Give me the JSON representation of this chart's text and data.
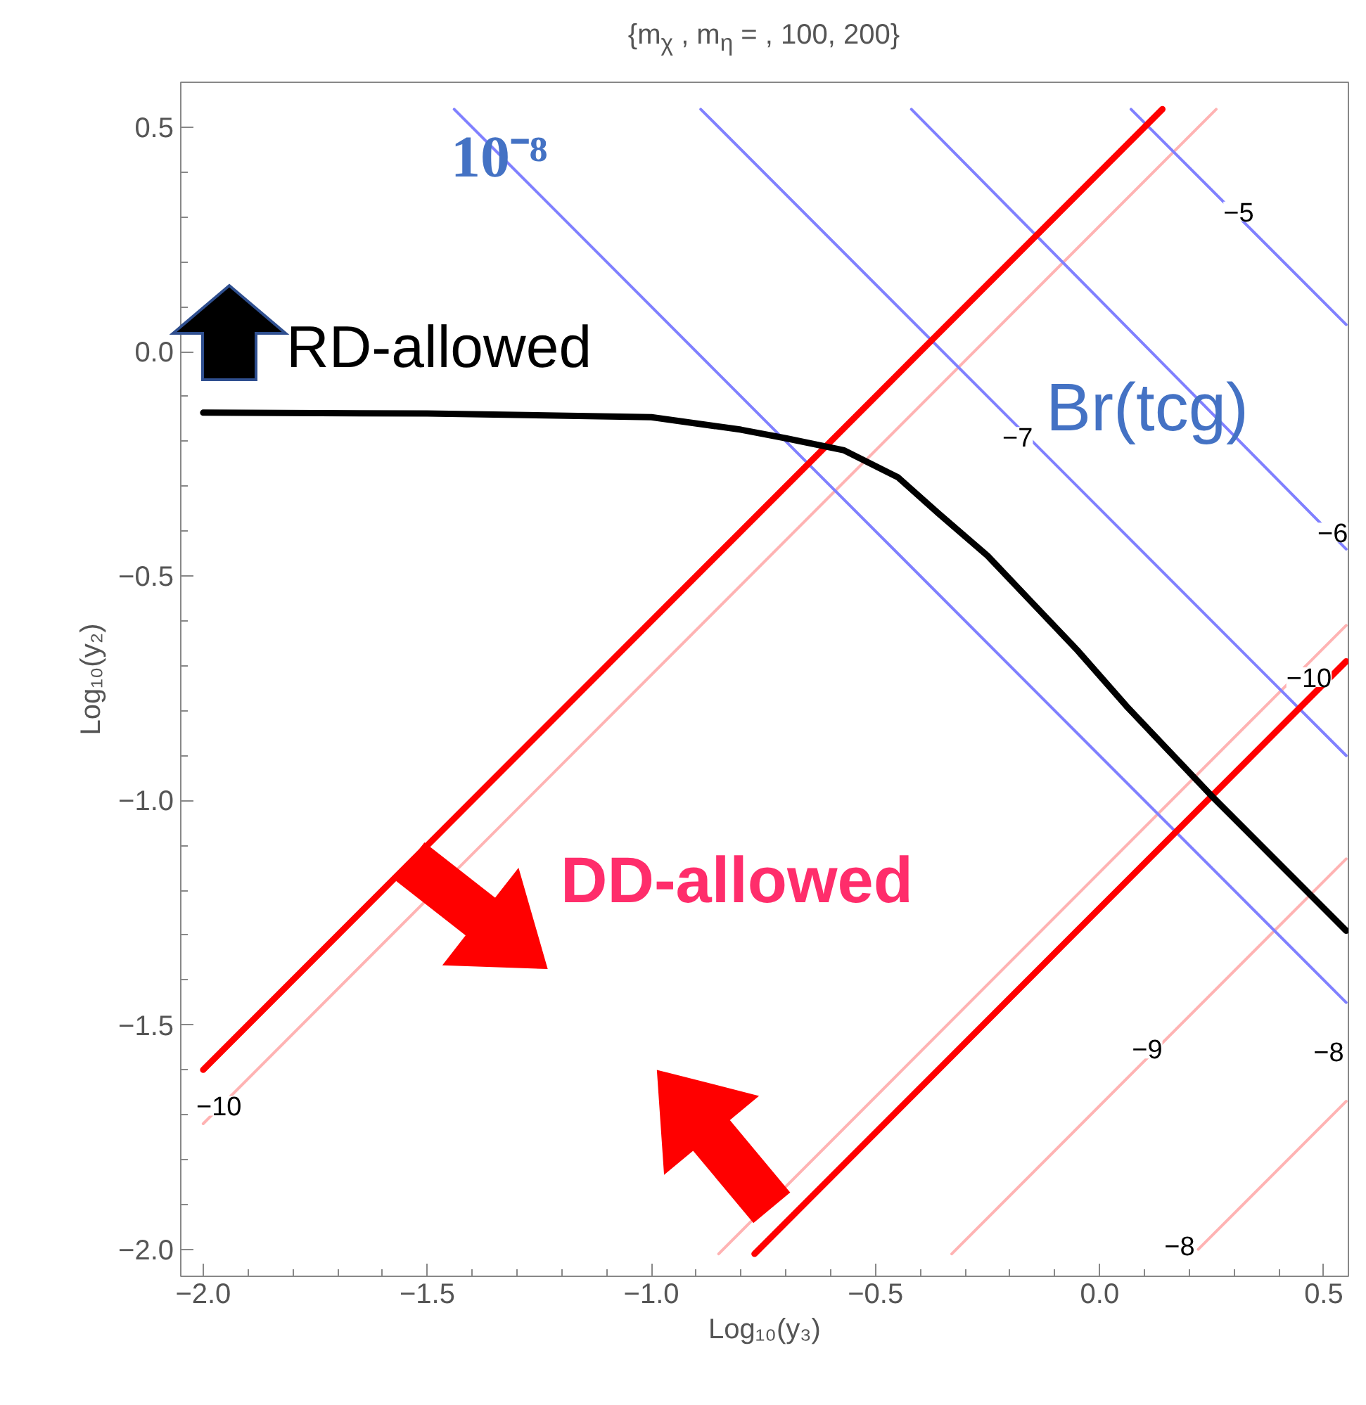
{
  "chart_data": {
    "type": "line",
    "title": "{m$_{χ}$ , m$_{η}$ = , 100, 200}",
    "xlabel": "Log₁₀(y₃)",
    "ylabel": "Log₁₀(y₂)",
    "xlim": [
      -2.05,
      0.555
    ],
    "ylim": [
      -2.06,
      0.6
    ],
    "xticks": [
      {
        "value": -2.0,
        "label": "−2.0"
      },
      {
        "value": -1.5,
        "label": "−1.5"
      },
      {
        "value": -1.0,
        "label": "−1.0"
      },
      {
        "value": -0.5,
        "label": "−0.5"
      },
      {
        "value": 0.0,
        "label": "0.0"
      },
      {
        "value": 0.5,
        "label": "0.5"
      }
    ],
    "yticks": [
      {
        "value": -2.0,
        "label": "−2.0"
      },
      {
        "value": -1.5,
        "label": "−1.5"
      },
      {
        "value": -1.0,
        "label": "−1.0"
      },
      {
        "value": -0.5,
        "label": "−0.5"
      },
      {
        "value": 0.0,
        "label": "0.0"
      },
      {
        "value": 0.5,
        "label": "0.5"
      }
    ],
    "series": [
      {
        "color": "#ffb3b3",
        "x": [
          -2.0,
          0.26
        ],
        "values": [
          -1.72,
          0.54
        ]
      },
      {
        "color": "#ffb3b3",
        "x": [
          -0.85,
          0.55
        ],
        "values": [
          -2.01,
          -0.61
        ]
      },
      {
        "color": "#ffb3b3",
        "x": [
          -0.33,
          0.55
        ],
        "values": [
          -2.01,
          -1.13
        ]
      },
      {
        "color": "#ffb3b3",
        "x": [
          0.22,
          0.55
        ],
        "values": [
          -2.0,
          -1.67
        ]
      },
      {
        "color": "#8080ff",
        "x": [
          -1.44,
          0.55
        ],
        "values": [
          0.54,
          -1.45
        ]
      },
      {
        "color": "#8080ff",
        "x": [
          -0.89,
          0.55
        ],
        "values": [
          0.54,
          -0.9
        ]
      },
      {
        "color": "#8080ff",
        "x": [
          -0.42,
          0.55
        ],
        "values": [
          0.54,
          -0.44
        ]
      },
      {
        "color": "#8080ff",
        "x": [
          0.07,
          0.55
        ],
        "values": [
          0.54,
          0.06
        ]
      },
      {
        "color": "#ff0000",
        "x": [
          -2.0,
          0.14
        ],
        "values": [
          -1.6,
          0.54
        ]
      },
      {
        "color": "#ff0000",
        "x": [
          -0.77,
          0.55
        ],
        "values": [
          -2.01,
          -0.69
        ]
      },
      {
        "color": "#000000",
        "x": [
          -2.0,
          -1.5,
          -1.0,
          -0.8,
          -0.7,
          -0.57,
          -0.45,
          -0.36,
          -0.25,
          -0.15,
          -0.05,
          0.06,
          0.15,
          0.25,
          0.4,
          0.55
        ],
        "values": [
          -0.136,
          -0.138,
          -0.146,
          -0.174,
          -0.193,
          -0.22,
          -0.28,
          -0.36,
          -0.455,
          -0.56,
          -0.665,
          -0.79,
          -0.885,
          -0.99,
          -1.14,
          -1.29
        ]
      }
    ],
    "annotations": [
      "10⁻⁸",
      "RD-allowed",
      "Br(tcg)",
      "DD-allowed",
      "−10",
      "−8",
      "−8",
      {
        "text": "−10",
        "x": -1.965,
        "y": -1.68
      },
      {
        "text": "−9",
        "x": 0.106,
        "y": -1.553
      },
      {
        "text": "−5",
        "x": 0.31,
        "y": 0.312
      },
      {
        "text": "−7",
        "x": -0.183,
        "y": -0.19
      },
      {
        "text": "−6",
        "x": 0.52,
        "y": -0.403
      }
    ]
  }
}
